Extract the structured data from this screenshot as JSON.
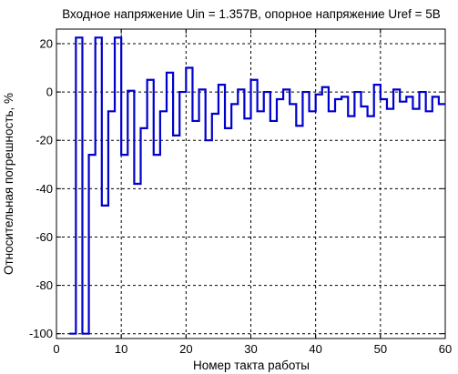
{
  "chart_data": {
    "type": "line",
    "title": "Входное напряжение Uin = 1.357В, опорное напряжение Uref = 5В",
    "xlabel": "Номер такта работы",
    "ylabel": "Относительная погрешность, %",
    "xlim": [
      0,
      60
    ],
    "ylim": [
      -102,
      26
    ],
    "xticks": [
      0,
      10,
      20,
      30,
      40,
      50,
      60
    ],
    "yticks": [
      -100,
      -80,
      -60,
      -40,
      -20,
      0,
      20
    ],
    "xtick_labels": [
      "0",
      "10",
      "20",
      "30",
      "40",
      "50",
      "60"
    ],
    "ytick_labels": [
      "-100",
      "-80",
      "-60",
      "-40",
      "-20",
      "0",
      "20"
    ],
    "grid": true,
    "step": true,
    "series": [
      {
        "color": "#0000cc",
        "x": [
          2,
          3,
          4,
          5,
          6,
          7,
          8,
          9,
          10,
          11,
          12,
          13,
          14,
          15,
          16,
          17,
          18,
          19,
          20,
          21,
          22,
          23,
          24,
          25,
          26,
          27,
          28,
          29,
          30,
          31,
          32,
          33,
          34,
          35,
          36,
          37,
          38,
          39,
          40,
          41,
          42,
          43,
          44,
          45,
          46,
          47,
          48,
          49,
          50,
          51,
          52,
          53,
          54,
          55,
          56,
          57,
          58,
          59
        ],
        "y": [
          -100,
          22.5,
          -100,
          -26,
          22.5,
          -47,
          -8,
          22.5,
          -26,
          0.5,
          -38,
          -15,
          5,
          -26,
          -8,
          8,
          -18,
          0,
          10,
          -12,
          1,
          -20,
          -9,
          3,
          -15,
          -5,
          1,
          -11,
          5,
          -8,
          0,
          -12,
          -3,
          1,
          -5,
          -14,
          0,
          -8,
          -1,
          2,
          -8,
          -3,
          -2,
          -10,
          0,
          -6,
          -10,
          3,
          -3,
          -7,
          1,
          -4,
          -2,
          -7,
          0,
          -8,
          -2,
          -5
        ]
      }
    ]
  }
}
